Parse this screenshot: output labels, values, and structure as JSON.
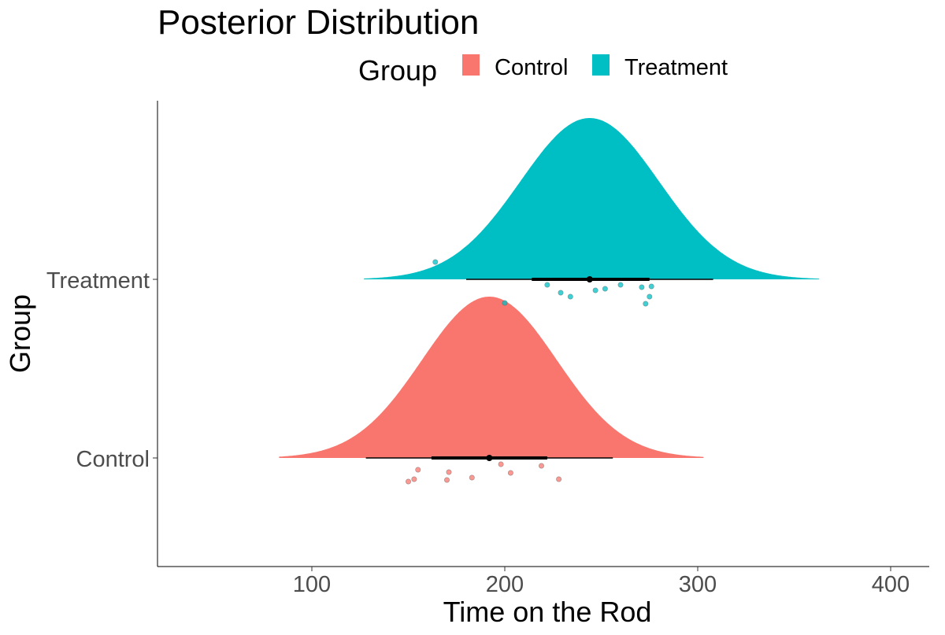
{
  "chart_data": {
    "type": "raincloud",
    "title": "Posterior Distribution",
    "xlabel": "Time on the Rod",
    "ylabel": "Group",
    "xlim": [
      20,
      420
    ],
    "x_ticks": [
      100,
      200,
      300,
      400
    ],
    "grid": false,
    "legend": {
      "title": "Group",
      "position": "top",
      "entries": [
        "Control",
        "Treatment"
      ]
    },
    "groups": [
      {
        "name": "Control",
        "color": "#F8766D",
        "density": {
          "mean": 192,
          "sd": 35,
          "min": 83,
          "max": 303
        },
        "point_estimate": 192,
        "interval_inner": [
          162,
          222
        ],
        "interval_outer": [
          128,
          256
        ],
        "observations": [
          150,
          153,
          155,
          170,
          171,
          183,
          198,
          203,
          219,
          228
        ]
      },
      {
        "name": "Treatment",
        "color": "#00BFC4",
        "density": {
          "mean": 244,
          "sd": 36,
          "min": 127,
          "max": 363
        },
        "point_estimate": 244,
        "interval_inner": [
          214,
          275
        ],
        "interval_outer": [
          180,
          308
        ],
        "observations": [
          164,
          200,
          222,
          229,
          234,
          247,
          252,
          260,
          271,
          273,
          275,
          276
        ]
      }
    ]
  }
}
